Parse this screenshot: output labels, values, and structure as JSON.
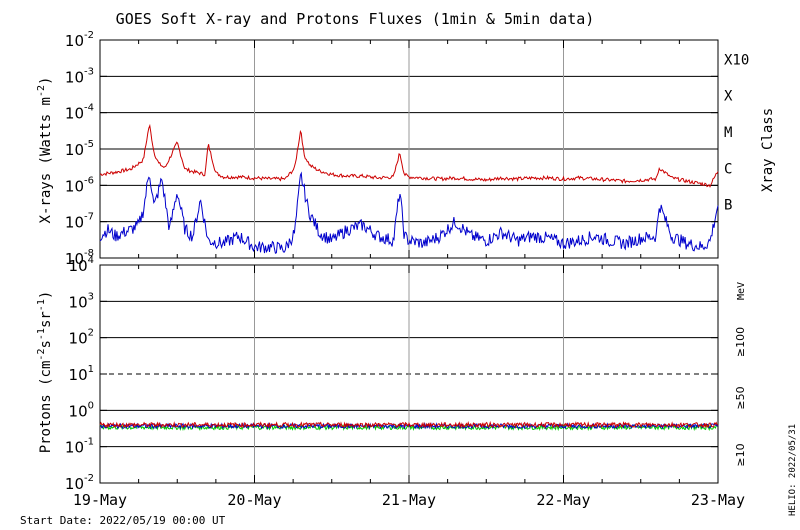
{
  "chart_data": [
    {
      "type": "line",
      "title": "GOES Soft X-ray and Protons Fluxes   (1min & 5min data)",
      "ylabel_base": "X-rays (Watts m",
      "ylabel_exp": "-2",
      "ylabel_tail": ")",
      "yscale": "log",
      "ylim": [
        1e-08,
        0.01
      ],
      "grid": true,
      "y_ticks": [
        {
          "base": "10",
          "exp": "-8"
        },
        {
          "base": "10",
          "exp": "-7"
        },
        {
          "base": "10",
          "exp": "-6"
        },
        {
          "base": "10",
          "exp": "-5"
        },
        {
          "base": "10",
          "exp": "-4"
        },
        {
          "base": "10",
          "exp": "-3"
        },
        {
          "base": "10",
          "exp": "-2"
        }
      ],
      "right_axis_label": "Xray Class",
      "class_labels": [
        {
          "label": "B",
          "value": 1e-07
        },
        {
          "label": "C",
          "value": 1e-06
        },
        {
          "label": "M",
          "value": 1e-05
        },
        {
          "label": "X",
          "value": 0.0001
        },
        {
          "label": "X10",
          "value": 0.001
        }
      ],
      "x_ticks": [
        "19-May",
        "20-May",
        "21-May",
        "22-May",
        "23-May"
      ],
      "series": [
        {
          "color": "#cc0000",
          "x_days": [
            0.0,
            0.1,
            0.2,
            0.28,
            0.32,
            0.35,
            0.38,
            0.42,
            0.5,
            0.55,
            0.6,
            0.68,
            0.7,
            0.75,
            0.8,
            0.9,
            1.0,
            1.1,
            1.2,
            1.26,
            1.3,
            1.32,
            1.36,
            1.42,
            1.5,
            1.6,
            1.7,
            1.8,
            1.9,
            1.94,
            1.97,
            2.0,
            2.1,
            2.2,
            2.3,
            2.4,
            2.5,
            2.6,
            2.7,
            2.8,
            2.9,
            3.0,
            3.1,
            3.2,
            3.3,
            3.4,
            3.5,
            3.6,
            3.62,
            3.7,
            3.8,
            3.9,
            3.95,
            4.0
          ],
          "y": [
            2e-06,
            2.3e-06,
            2.8e-06,
            5e-06,
            4.8e-05,
            8e-06,
            4e-06,
            3e-06,
            1.5e-05,
            2.8e-06,
            2.4e-06,
            2e-06,
            1.4e-05,
            2.2e-06,
            1.7e-06,
            1.7e-06,
            1.6e-06,
            1.5e-06,
            1.5e-06,
            3e-06,
            3.7e-05,
            7e-06,
            3.5e-06,
            2.5e-06,
            2e-06,
            1.8e-06,
            1.8e-06,
            1.6e-06,
            1.7e-06,
            8e-06,
            2e-06,
            1.7e-06,
            1.6e-06,
            1.5e-06,
            1.6e-06,
            1.5e-06,
            1.4e-06,
            1.6e-06,
            1.5e-06,
            1.6e-06,
            1.6e-06,
            1.5e-06,
            1.6e-06,
            1.5e-06,
            1.4e-06,
            1.3e-06,
            1.4e-06,
            1.5e-06,
            3e-06,
            1.6e-06,
            1.3e-06,
            1.1e-06,
            1e-06,
            2.5e-06
          ]
        },
        {
          "color": "#0000cc",
          "x_days": [
            0.0,
            0.05,
            0.1,
            0.15,
            0.2,
            0.25,
            0.28,
            0.32,
            0.35,
            0.4,
            0.45,
            0.5,
            0.55,
            0.6,
            0.65,
            0.7,
            0.8,
            0.9,
            1.0,
            1.1,
            1.2,
            1.26,
            1.3,
            1.35,
            1.42,
            1.5,
            1.6,
            1.7,
            1.8,
            1.9,
            1.94,
            1.97,
            2.0,
            2.1,
            2.2,
            2.3,
            2.4,
            2.5,
            2.6,
            2.7,
            2.8,
            2.9,
            3.0,
            3.1,
            3.2,
            3.3,
            3.4,
            3.5,
            3.6,
            3.62,
            3.7,
            3.8,
            3.9,
            3.95,
            4.0
          ],
          "y": [
            4e-08,
            6e-08,
            4e-08,
            5e-08,
            6e-08,
            8e-08,
            2e-07,
            2.5e-06,
            2.5e-07,
            1.5e-06,
            6e-08,
            7e-07,
            6e-08,
            4e-08,
            4e-07,
            3e-08,
            2.5e-08,
            4e-08,
            2e-08,
            2e-08,
            1.8e-08,
            5e-08,
            2e-06,
            2e-07,
            5e-08,
            3e-08,
            6e-08,
            8e-08,
            4e-08,
            3e-08,
            7e-07,
            4e-08,
            3e-08,
            2.5e-08,
            4e-08,
            1e-07,
            4e-08,
            3e-08,
            5e-08,
            3e-08,
            4e-08,
            3.5e-08,
            2.5e-08,
            3e-08,
            4e-08,
            3e-08,
            2.5e-08,
            3.5e-08,
            4e-08,
            3e-07,
            4e-08,
            2.5e-08,
            2e-08,
            3e-08,
            3e-07
          ]
        }
      ]
    },
    {
      "type": "line",
      "ylabel_base": "Protons (cm",
      "ylabel_exp": "-2",
      "ylabel_mid": "s",
      "ylabel_exp2": "-1",
      "ylabel_mid2": "sr",
      "ylabel_exp3": "-1",
      "ylabel_tail": ")",
      "yscale": "log",
      "ylim": [
        0.01,
        10000.0
      ],
      "grid": true,
      "threshold_line": 10,
      "y_ticks": [
        {
          "base": "10",
          "exp": "-2"
        },
        {
          "base": "10",
          "exp": "-1"
        },
        {
          "base": "10",
          "exp": "0"
        },
        {
          "base": "10",
          "exp": "1"
        },
        {
          "base": "10",
          "exp": "2"
        },
        {
          "base": "10",
          "exp": "3"
        },
        {
          "base": "10",
          "exp": "4"
        }
      ],
      "x_ticks": [
        "19-May",
        "20-May",
        "21-May",
        "22-May",
        "23-May"
      ],
      "unit_label": "MeV",
      "legend": [
        {
          "name": "≥10",
          "color": "#cc0000"
        },
        {
          "name": "≥50",
          "color": "#0000cc"
        },
        {
          "name": "≥100",
          "color": "#00cc00"
        }
      ],
      "series": [
        {
          "name": "≥10",
          "color": "#cc0000",
          "base_value": 0.4
        },
        {
          "name": "≥50",
          "color": "#0000cc",
          "base_value": 0.37
        },
        {
          "name": "≥100",
          "color": "#00cc00",
          "base_value": 0.34
        }
      ]
    }
  ],
  "footer": {
    "start_date": "Start Date: 2022/05/19 00:00 UT",
    "credit": "HELIO: 2022/05/31"
  }
}
